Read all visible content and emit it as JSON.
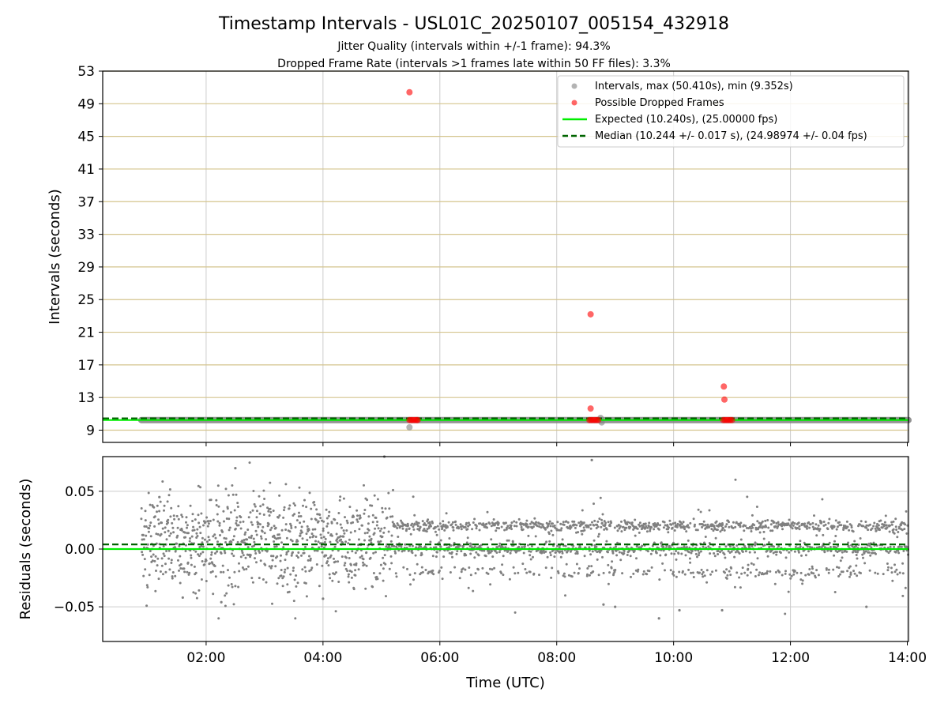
{
  "chart_data": [
    {
      "type": "scatter",
      "title": "Timestamp Intervals - USL01C_20250107_005154_432918",
      "subtitle_lines": [
        "Jitter Quality (intervals within +/-1 frame): 94.3%",
        "Dropped Frame Rate (intervals >1 frames late within 50 FF files): 3.3%"
      ],
      "ylabel": "Intervals (seconds)",
      "xlabel": "",
      "x_unit": "hours UTC",
      "xlim": [
        0.23,
        14.02
      ],
      "ylim": [
        7.5,
        53
      ],
      "yticks": [
        9,
        13,
        17,
        21,
        25,
        29,
        33,
        37,
        41,
        45,
        49,
        53
      ],
      "ytick_labels": [
        "9",
        "13",
        "17",
        "21",
        "25",
        "29",
        "33",
        "37",
        "41",
        "45",
        "49",
        "53"
      ],
      "horizontal_gridlines": "at y ticks, olive/tan color",
      "vertical_gridlines": "at x ticks, light gray",
      "legend_position": "top-right",
      "legend": [
        "Intervals, max (50.410s), min (9.352s)",
        "Possible Dropped Frames",
        "Expected (10.240s), (25.00000 fps)",
        "Median (10.244 +/- 0.017 s), (24.98974 +/- 0.04 fps)"
      ],
      "intervals_band": {
        "x_start": 0.89,
        "x_end": 14.02,
        "y": 10.24
      },
      "intervals_outliers": [
        {
          "x": 5.48,
          "y": 9.35
        },
        {
          "x": 8.77,
          "y": 9.95
        },
        {
          "x": 8.75,
          "y": 10.5
        }
      ],
      "dropped_frames": [
        {
          "x": 5.48,
          "y": 50.41
        },
        {
          "x": 5.48,
          "y": 10.24
        },
        {
          "x": 5.51,
          "y": 10.24
        },
        {
          "x": 5.54,
          "y": 10.24
        },
        {
          "x": 5.57,
          "y": 10.24
        },
        {
          "x": 5.6,
          "y": 10.24
        },
        {
          "x": 5.62,
          "y": 10.24
        },
        {
          "x": 8.58,
          "y": 23.2
        },
        {
          "x": 8.58,
          "y": 11.65
        },
        {
          "x": 8.56,
          "y": 10.24
        },
        {
          "x": 8.59,
          "y": 10.24
        },
        {
          "x": 8.62,
          "y": 10.24
        },
        {
          "x": 8.65,
          "y": 10.24
        },
        {
          "x": 8.68,
          "y": 10.24
        },
        {
          "x": 8.71,
          "y": 10.24
        },
        {
          "x": 10.86,
          "y": 14.35
        },
        {
          "x": 10.87,
          "y": 12.75
        },
        {
          "x": 10.85,
          "y": 10.24
        },
        {
          "x": 10.88,
          "y": 10.24
        },
        {
          "x": 10.91,
          "y": 10.24
        },
        {
          "x": 10.94,
          "y": 10.24
        },
        {
          "x": 10.97,
          "y": 10.24
        },
        {
          "x": 11.0,
          "y": 10.24
        }
      ],
      "expected_line": {
        "y": 10.24
      },
      "median_line": {
        "y": 10.244
      },
      "colors": {
        "intervals": "#808080",
        "dropped": "#ff0000",
        "expected": "#00ee00",
        "median": "#006400",
        "hgrid": "#d4c48e",
        "vgrid": "#cccccc"
      }
    },
    {
      "type": "scatter",
      "title": "",
      "ylabel": "Residuals (seconds)",
      "xlabel": "Time (UTC)",
      "x_unit": "hours UTC",
      "xlim": [
        0.23,
        14.02
      ],
      "ylim": [
        -0.08,
        0.08
      ],
      "yticks": [
        -0.05,
        0.0,
        0.05
      ],
      "ytick_labels": [
        "−0.05",
        "0.00",
        "0.05"
      ],
      "xticks": [
        2,
        4,
        6,
        8,
        10,
        12,
        14
      ],
      "xtick_labels": [
        "02:00",
        "04:00",
        "06:00",
        "08:00",
        "10:00",
        "12:00",
        "14:00"
      ],
      "grid": true,
      "residual_range": {
        "x_start": 0.89,
        "x_end": 14.02,
        "y_min": -0.06,
        "y_max": 0.08
      },
      "sample_residuals": [
        {
          "x": 1.2,
          "y": 0.045
        },
        {
          "x": 1.6,
          "y": -0.042
        },
        {
          "x": 2.26,
          "y": -0.046
        },
        {
          "x": 2.5,
          "y": 0.07
        },
        {
          "x": 4.0,
          "y": -0.043
        },
        {
          "x": 5.05,
          "y": 0.08
        },
        {
          "x": 8.6,
          "y": 0.077
        },
        {
          "x": 8.8,
          "y": -0.048
        },
        {
          "x": 9.0,
          "y": -0.05
        },
        {
          "x": 9.75,
          "y": -0.06
        },
        {
          "x": 10.1,
          "y": -0.053
        },
        {
          "x": 10.83,
          "y": -0.053
        },
        {
          "x": 13.3,
          "y": -0.05
        }
      ],
      "expected_line": {
        "y": 0.0
      },
      "median_line": {
        "y": 0.004
      },
      "colors": {
        "residuals": "#808080",
        "expected": "#00ee00",
        "median": "#006400",
        "grid": "#cccccc"
      }
    }
  ]
}
